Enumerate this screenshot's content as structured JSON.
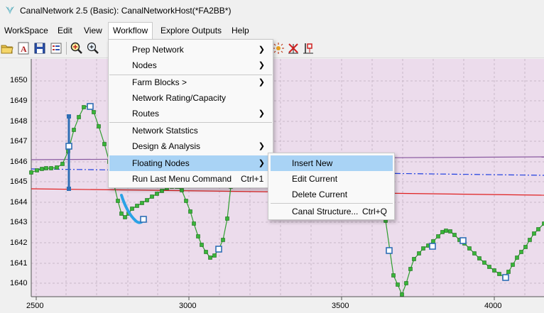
{
  "window": {
    "title": "CanalNetwork 2.5  (Basic): CanalNetworkHost(*FA2BB*)"
  },
  "menubar": [
    "WorkSpace",
    "Edit",
    "View",
    "Workflow",
    "Explore Outputs",
    "Help"
  ],
  "workflow_menu": {
    "items": [
      {
        "label": "Prep Network",
        "submenu": true
      },
      {
        "label": "Nodes",
        "submenu": true
      },
      {
        "label": "Farm Blocks >",
        "submenu": true
      },
      {
        "label": "Network Rating/Capacity",
        "submenu": false
      },
      {
        "label": "Routes",
        "submenu": true
      },
      {
        "label": "Network Statstics",
        "submenu": false
      },
      {
        "label": "Design & Analysis",
        "submenu": true
      },
      {
        "label": "Floating Nodes",
        "submenu": true,
        "highlighted": true
      },
      {
        "label": "Run Last Menu Command",
        "shortcut": "Ctrl+1",
        "submenu": false
      }
    ]
  },
  "floating_nodes_menu": {
    "items": [
      {
        "label": "Insert New",
        "highlighted": true
      },
      {
        "label": "Edit Current"
      },
      {
        "label": "Delete Current"
      },
      {
        "label": "Canal Structure...",
        "shortcut": "Ctrl+Q"
      }
    ]
  },
  "plot": {
    "y_ticks": [
      "1650",
      "1649",
      "1648",
      "1647",
      "1646",
      "1645",
      "1644",
      "1643",
      "1642",
      "1641",
      "1640"
    ],
    "x_ticks": [
      "2500",
      "3000",
      "3500",
      "4000"
    ],
    "colors": {
      "background": "#ecdcec",
      "grid": "#c8b8c8",
      "profile": "#2e9e2e",
      "node_fill": "#39b539",
      "floating_node": "#2f6fb5",
      "selection": "#2ba2e6",
      "red_line": "#e02020",
      "purple_line": "#8a5aa0",
      "blue_dashdot": "#2040e0"
    }
  }
}
